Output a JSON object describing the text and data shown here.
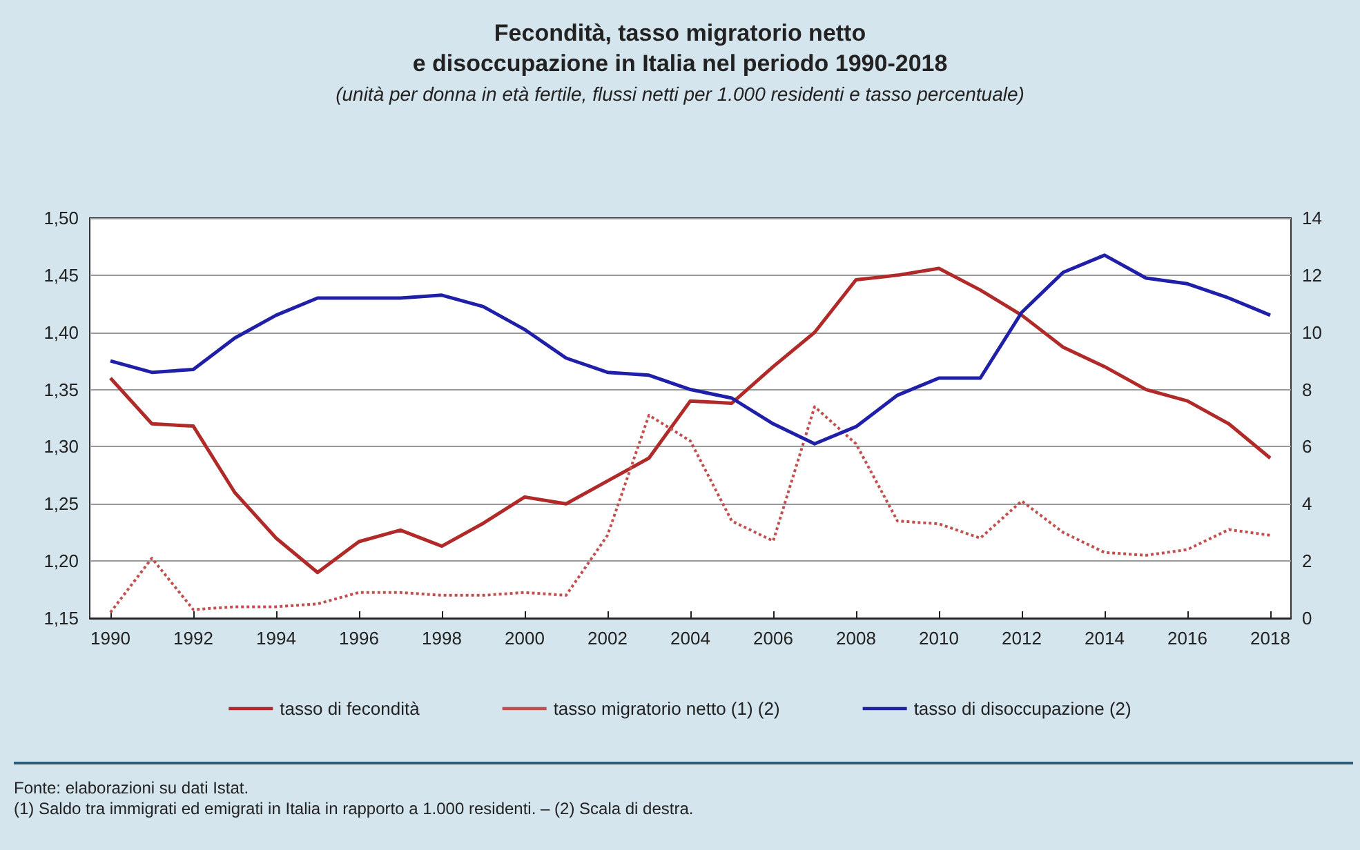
{
  "chart_data": {
    "type": "line",
    "title": "Fecondità, tasso migratorio netto\ne disoccupazione in Italia nel periodo 1990-2018",
    "subtitle": "(unità per donna in età fertile, flussi netti per 1.000 residenti e tasso percentuale)",
    "x": [
      1990,
      1991,
      1992,
      1993,
      1994,
      1995,
      1996,
      1997,
      1998,
      1999,
      2000,
      2001,
      2002,
      2003,
      2004,
      2005,
      2006,
      2007,
      2008,
      2009,
      2010,
      2011,
      2012,
      2013,
      2014,
      2015,
      2016,
      2017,
      2018
    ],
    "series": [
      {
        "name": "tasso di fecondità",
        "color": "#b02a2a",
        "line_style": "solid",
        "values": [
          1.36,
          1.32,
          1.318,
          1.26,
          1.22,
          1.19,
          1.217,
          1.227,
          1.213,
          1.233,
          1.256,
          1.25,
          1.27,
          1.29,
          1.34,
          1.338,
          1.37,
          1.4,
          1.446,
          1.45,
          1.456,
          1.437,
          1.415,
          1.387,
          1.37,
          1.35,
          1.34,
          1.32,
          1.29
        ]
      },
      {
        "name": "tasso migratorio netto (1) (2)",
        "color": "#c0504d",
        "line_style": "dotted",
        "axis": "y2",
        "values": [
          0.2,
          2.1,
          0.3,
          0.4,
          0.4,
          0.5,
          0.9,
          0.9,
          0.8,
          0.8,
          0.9,
          0.8,
          2.9,
          7.1,
          6.2,
          3.4,
          2.7,
          7.4,
          6.1,
          3.4,
          3.3,
          2.8,
          4.1,
          3.0,
          2.3,
          2.2,
          2.4,
          3.1,
          2.9
        ]
      },
      {
        "name": "tasso di disoccupazione (2)",
        "color": "#1f1fa8",
        "line_style": "solid",
        "axis": "y2",
        "values": [
          9.0,
          8.6,
          8.7,
          9.8,
          10.6,
          11.2,
          11.2,
          11.2,
          11.3,
          10.9,
          10.1,
          9.1,
          8.6,
          8.5,
          8.0,
          7.7,
          6.8,
          6.1,
          6.7,
          7.8,
          8.4,
          8.4,
          10.7,
          12.1,
          12.7,
          11.9,
          11.7,
          11.2,
          10.6
        ]
      }
    ],
    "xlim": [
      1989.5,
      2018.5
    ],
    "xticks": [
      1990,
      1992,
      1994,
      1996,
      1998,
      2000,
      2002,
      2004,
      2006,
      2008,
      2010,
      2012,
      2014,
      2016,
      2018
    ],
    "ylim": [
      1.15,
      1.5
    ],
    "yticks": [
      {
        "value": 1.15,
        "label": "1,15"
      },
      {
        "value": 1.2,
        "label": "1,20"
      },
      {
        "value": 1.25,
        "label": "1,25"
      },
      {
        "value": 1.3,
        "label": "1,30"
      },
      {
        "value": 1.35,
        "label": "1,35"
      },
      {
        "value": 1.4,
        "label": "1,40"
      },
      {
        "value": 1.45,
        "label": "1,45"
      },
      {
        "value": 1.5,
        "label": "1,50"
      }
    ],
    "y2lim": [
      0,
      14
    ],
    "y2ticks": [
      0,
      2,
      4,
      6,
      8,
      10,
      12,
      14
    ],
    "grid": "y",
    "legend": "bottom",
    "marker": "none",
    "annotations": [
      "Fonte: elaborazioni su dati Istat.",
      "(1) Saldo tra immigrati ed emigrati in Italia in rapporto a 1.000 residenti. – (2) Scala di destra."
    ]
  }
}
